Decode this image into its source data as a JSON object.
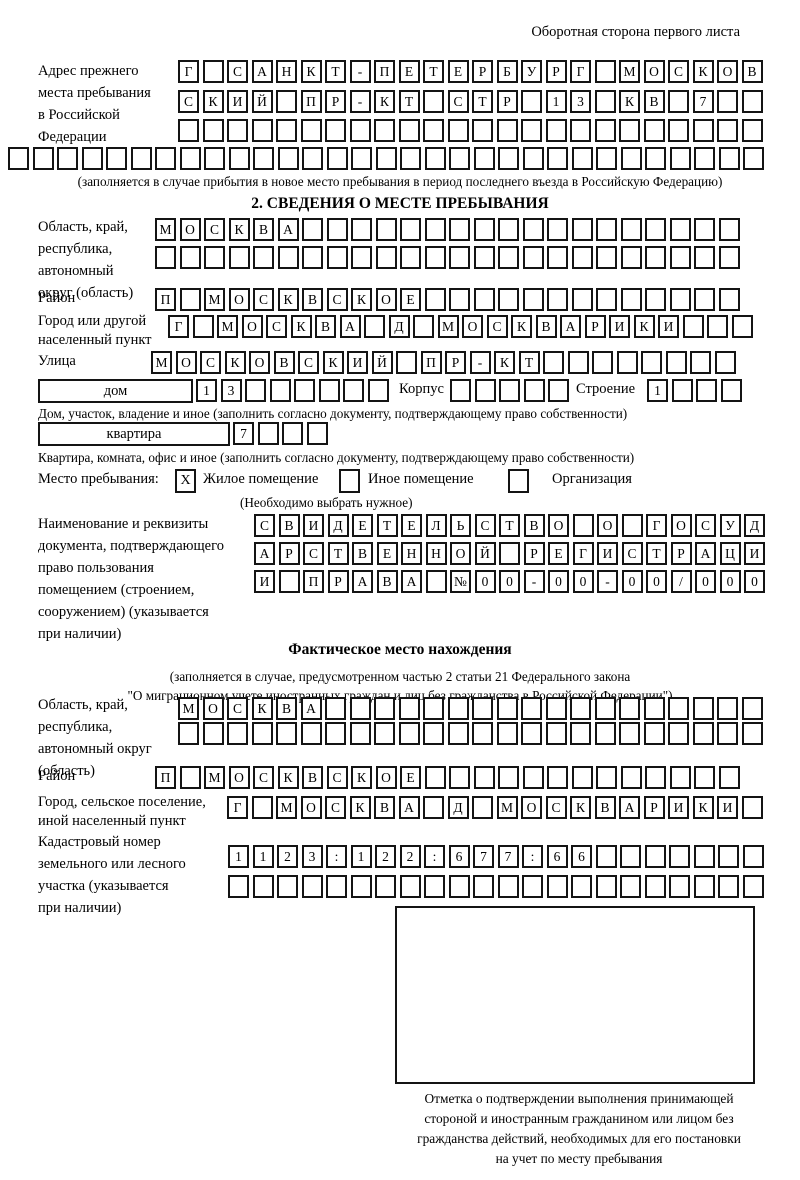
{
  "meta": {
    "top_right": "Оборотная сторона первого листа"
  },
  "prev_address": {
    "label_lines": [
      "Адрес прежнего",
      "места пребывания",
      "в Российской",
      "Федерации"
    ],
    "row1": "Г САНКТ-ПЕТЕРБУРГ МОСКОВ",
    "row2": "СКИЙ ПР-КТ СТР 13 КВ 7",
    "row3": "",
    "row4": "",
    "note": "(заполняется в случае прибытия в новое место пребывания в период последнего въезда в Российскую Федерацию)"
  },
  "section2": {
    "title": "2. СВЕДЕНИЯ О МЕСТЕ ПРЕБЫВАНИЯ",
    "region_label_lines": [
      "Область, край,",
      "республика,",
      "автономный",
      "округ (область)"
    ],
    "region_row1": "МОСКВА",
    "region_row2": "",
    "district_label": "Район",
    "district_row": "П МОСКВСКОЕ",
    "city_label_lines": [
      "Город или другой",
      "населенный пункт"
    ],
    "city_row": "Г МОСКВА Д МОСКВАРИКИ",
    "street_label": "Улица",
    "street_row": "МОСКОВСКИЙ ПР-КТ",
    "house_box_label": "дом",
    "house_cells": "13",
    "korpus_label": "Корпус",
    "korpus_cells": "",
    "stroenie_label": "Строение",
    "stroenie_cells": "1",
    "house_note": "Дом, участок, владение и иное (заполнить согласно документу, подтверждающему право собственности)",
    "apartment_box_label": "квартира",
    "apartment_cells": "7",
    "apartment_note": "Квартира, комната, офис и иное (заполнить согласно документу, подтверждающему право собственности)",
    "stay_label": "Место пребывания:",
    "stay_options": [
      {
        "label": "Жилое помещение",
        "mark": "X"
      },
      {
        "label": "Иное помещение",
        "mark": ""
      },
      {
        "label": "Организация",
        "mark": ""
      }
    ],
    "stay_note": "(Необходимо выбрать нужное)",
    "doc_label_lines": [
      "Наименование и реквизиты",
      "документа, подтверждающего",
      "право пользования",
      "помещением (строением,",
      "сооружением) (указывается",
      "при наличии)"
    ],
    "doc_row1": "СВИДЕТЕЛЬСТВО О ГОСУД",
    "doc_row2": "АРСТВЕННОЙ РЕГИСТРАЦИ",
    "doc_row3": "И ПРАВА №00-00-00/000"
  },
  "section3": {
    "title": "Фактическое место нахождения",
    "note_line1": "(заполняется в случае, предусмотренном частью 2 статьи 21 Федерального закона",
    "note_line2": "\"О миграционном учете иностранных граждан и лиц без гражданства в Российской Федерации\")",
    "region_label_lines": [
      "Область, край,",
      "республика,",
      "автономный округ",
      "(область)"
    ],
    "region_row1": "МОСКВА",
    "region_row2": "",
    "district_label": "Район",
    "district_row": "П МОСКВСКОЕ",
    "city_label_lines": [
      "Город, сельское поселение,",
      "иной населенный пункт"
    ],
    "city_row": "Г МОСКВА Д МОСКВАРИКИ",
    "cadastre_label_lines": [
      "Кадастровый номер",
      "земельного или лесного",
      "участка (указывается",
      "при наличии)"
    ],
    "cadastre_row1": "1123:122:677:66",
    "cadastre_row2": "",
    "stamp_caption_lines": [
      "Отметка о подтверждении выполнения принимающей",
      "стороной и иностранным гражданином или лицом без",
      "гражданства действий, необходимых для его постановки",
      "на учет по месту пребывания"
    ]
  }
}
